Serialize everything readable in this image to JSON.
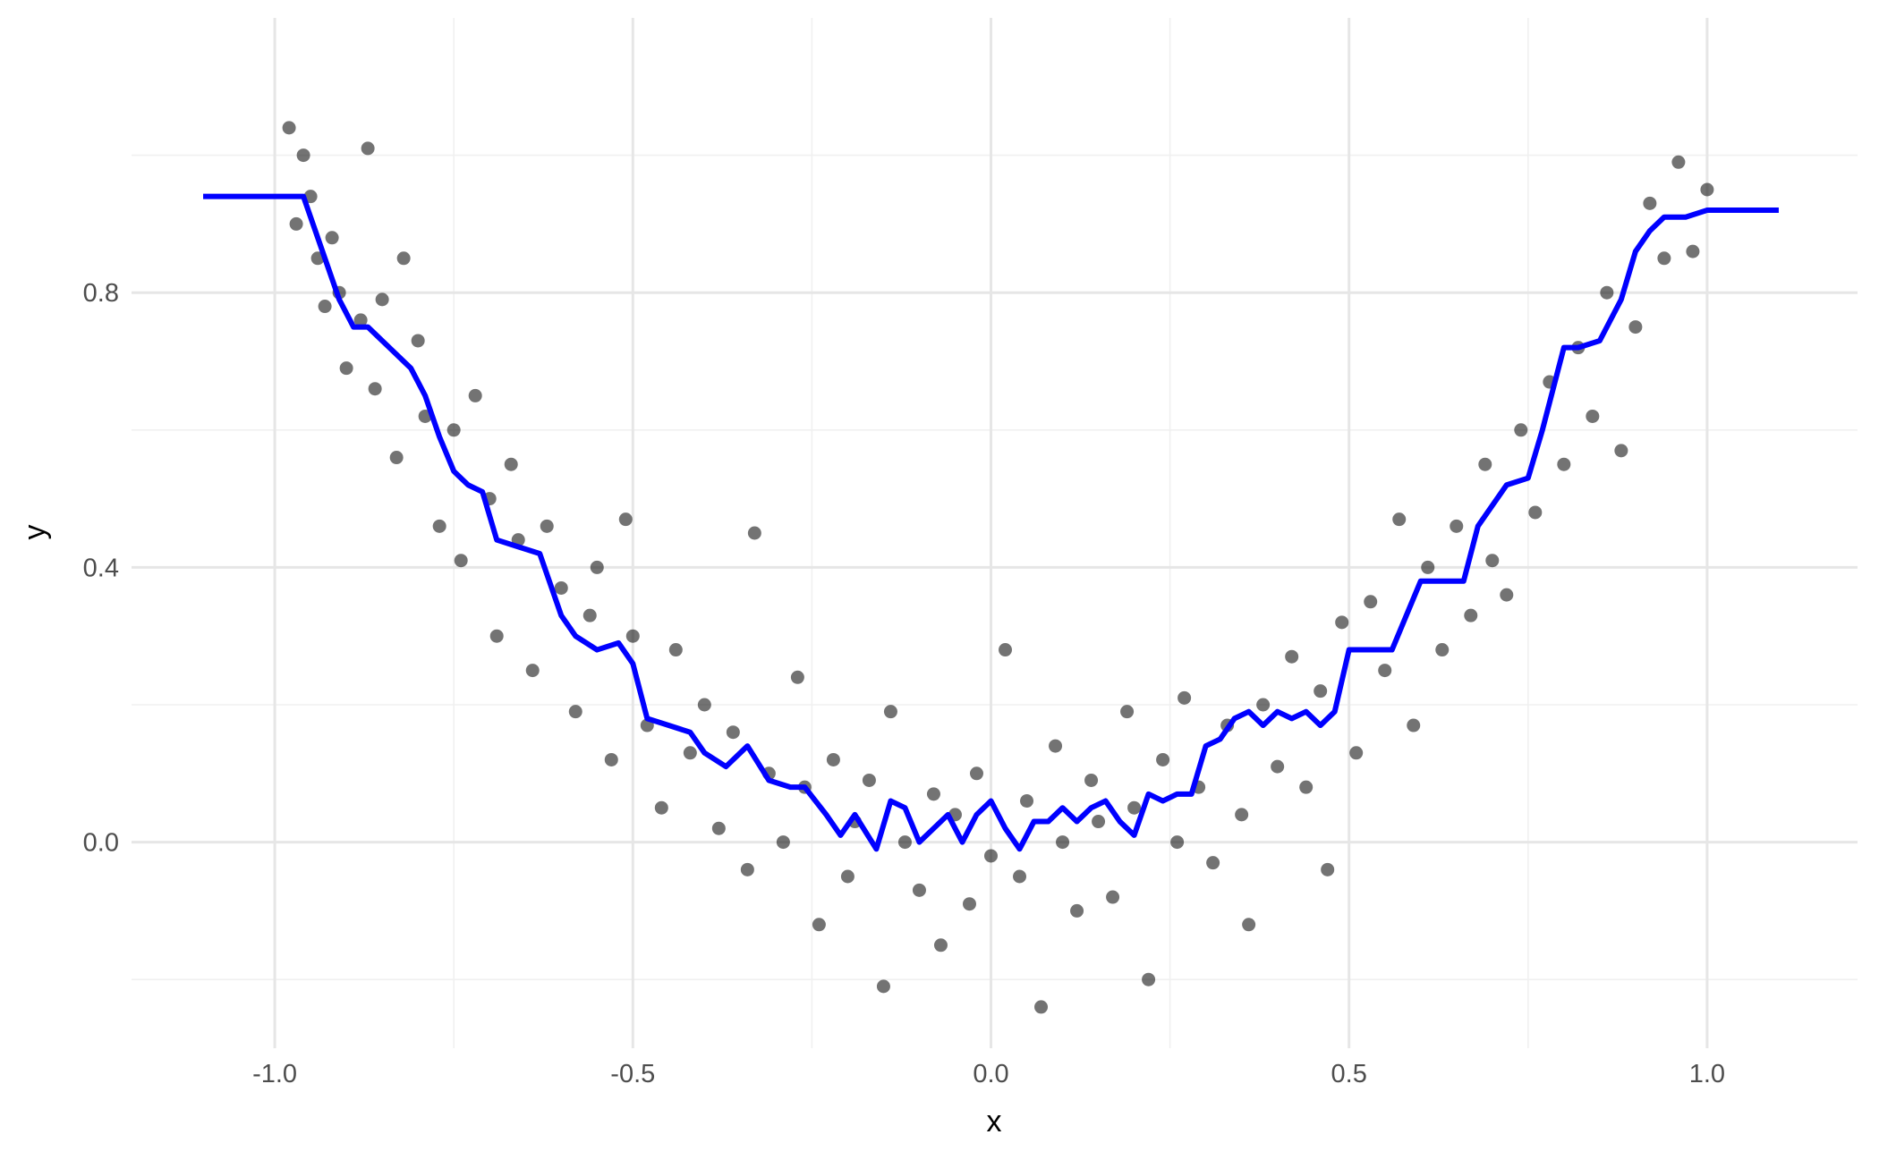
{
  "chart_data": {
    "type": "scatter",
    "xlabel": "x",
    "ylabel": "y",
    "xlim": [
      -1.2,
      1.21
    ],
    "ylim": [
      -0.3,
      1.2
    ],
    "xticks": [
      {
        "value": -1,
        "label": "-1.0"
      },
      {
        "value": -0.5,
        "label": "-0.5"
      },
      {
        "value": 0,
        "label": "0.0"
      },
      {
        "value": 0.5,
        "label": "0.5"
      },
      {
        "value": 1,
        "label": "1.0"
      }
    ],
    "yticks": [
      {
        "value": 0,
        "label": "0.0"
      },
      {
        "value": 0.4,
        "label": "0.4"
      },
      {
        "value": 0.8,
        "label": "0.8"
      }
    ],
    "x_minor_grid": [
      -0.75,
      -0.25,
      0.25,
      0.75
    ],
    "y_minor_grid": [
      -0.2,
      0.2,
      0.6,
      1.0
    ],
    "grid": true,
    "series": [
      {
        "type": "scatter",
        "color": "#000000",
        "x": [
          -0.98,
          -0.97,
          -0.96,
          -0.95,
          -0.94,
          -0.93,
          -0.92,
          -0.91,
          -0.9,
          -0.88,
          -0.87,
          -0.86,
          -0.85,
          -0.83,
          -0.82,
          -0.8,
          -0.79,
          -0.77,
          -0.75,
          -0.74,
          -0.72,
          -0.7,
          -0.69,
          -0.67,
          -0.66,
          -0.64,
          -0.62,
          -0.6,
          -0.58,
          -0.56,
          -0.55,
          -0.53,
          -0.51,
          -0.5,
          -0.48,
          -0.46,
          -0.44,
          -0.42,
          -0.4,
          -0.38,
          -0.36,
          -0.34,
          -0.33,
          -0.31,
          -0.29,
          -0.27,
          -0.26,
          -0.24,
          -0.22,
          -0.2,
          -0.19,
          -0.17,
          -0.15,
          -0.14,
          -0.12,
          -0.1,
          -0.08,
          -0.07,
          -0.05,
          -0.03,
          -0.02,
          0,
          0.02,
          0.04,
          0.05,
          0.07,
          0.09,
          0.1,
          0.12,
          0.14,
          0.15,
          0.17,
          0.19,
          0.2,
          0.22,
          0.24,
          0.26,
          0.27,
          0.29,
          0.31,
          0.33,
          0.35,
          0.36,
          0.38,
          0.4,
          0.42,
          0.44,
          0.46,
          0.47,
          0.49,
          0.51,
          0.53,
          0.55,
          0.57,
          0.59,
          0.61,
          0.63,
          0.65,
          0.67,
          0.69,
          0.7,
          0.72,
          0.74,
          0.76,
          0.78,
          0.8,
          0.82,
          0.84,
          0.86,
          0.88,
          0.9,
          0.92,
          0.94,
          0.96,
          0.98,
          1.0
        ],
        "values": [
          1.04,
          0.9,
          1.0,
          0.94,
          0.85,
          0.78,
          0.88,
          0.8,
          0.69,
          0.76,
          1.01,
          0.66,
          0.79,
          0.56,
          0.85,
          0.73,
          0.62,
          0.46,
          0.6,
          0.41,
          0.65,
          0.5,
          0.3,
          0.55,
          0.44,
          0.25,
          0.46,
          0.37,
          0.19,
          0.33,
          0.4,
          0.12,
          0.47,
          0.3,
          0.17,
          0.05,
          0.28,
          0.13,
          0.2,
          0.02,
          0.16,
          -0.04,
          0.45,
          0.1,
          0.0,
          0.24,
          0.08,
          -0.12,
          0.12,
          -0.05,
          0.03,
          0.09,
          -0.21,
          0.19,
          0.0,
          -0.07,
          0.07,
          -0.15,
          0.04,
          -0.09,
          0.1,
          -0.02,
          0.28,
          -0.05,
          0.06,
          -0.24,
          0.14,
          0.0,
          -0.1,
          0.09,
          0.03,
          -0.08,
          0.19,
          0.05,
          -0.2,
          0.12,
          0.0,
          0.21,
          0.08,
          -0.03,
          0.17,
          0.04,
          -0.12,
          0.2,
          0.11,
          0.27,
          0.08,
          0.22,
          -0.04,
          0.32,
          0.13,
          0.35,
          0.25,
          0.47,
          0.17,
          0.4,
          0.28,
          0.46,
          0.33,
          0.55,
          0.41,
          0.36,
          0.6,
          0.48,
          0.67,
          0.55,
          0.72,
          0.62,
          0.8,
          0.57,
          0.75,
          0.93,
          0.85,
          0.99,
          0.86,
          0.95
        ]
      },
      {
        "type": "line",
        "color": "#0000ff",
        "x": [
          -1.1,
          -0.96,
          -0.94,
          -0.91,
          -0.89,
          -0.87,
          -0.84,
          -0.81,
          -0.79,
          -0.77,
          -0.75,
          -0.73,
          -0.71,
          -0.69,
          -0.66,
          -0.63,
          -0.6,
          -0.58,
          -0.55,
          -0.52,
          -0.5,
          -0.48,
          -0.45,
          -0.42,
          -0.4,
          -0.37,
          -0.34,
          -0.31,
          -0.28,
          -0.26,
          -0.23,
          -0.21,
          -0.19,
          -0.16,
          -0.14,
          -0.12,
          -0.1,
          -0.08,
          -0.06,
          -0.04,
          -0.02,
          0,
          0.02,
          0.04,
          0.06,
          0.08,
          0.1,
          0.12,
          0.14,
          0.16,
          0.18,
          0.2,
          0.22,
          0.24,
          0.26,
          0.28,
          0.3,
          0.32,
          0.34,
          0.36,
          0.38,
          0.4,
          0.42,
          0.44,
          0.46,
          0.48,
          0.5,
          0.53,
          0.56,
          0.6,
          0.63,
          0.66,
          0.68,
          0.72,
          0.75,
          0.77,
          0.8,
          0.82,
          0.85,
          0.88,
          0.9,
          0.92,
          0.94,
          0.97,
          1.0,
          1.1
        ],
        "values": [
          0.94,
          0.94,
          0.88,
          0.79,
          0.75,
          0.75,
          0.72,
          0.69,
          0.65,
          0.59,
          0.54,
          0.52,
          0.51,
          0.44,
          0.43,
          0.42,
          0.33,
          0.3,
          0.28,
          0.29,
          0.26,
          0.18,
          0.17,
          0.16,
          0.13,
          0.11,
          0.14,
          0.09,
          0.08,
          0.08,
          0.04,
          0.01,
          0.04,
          -0.01,
          0.06,
          0.05,
          0.0,
          0.02,
          0.04,
          0.0,
          0.04,
          0.06,
          0.02,
          -0.01,
          0.03,
          0.03,
          0.05,
          0.03,
          0.05,
          0.06,
          0.03,
          0.01,
          0.07,
          0.06,
          0.07,
          0.07,
          0.14,
          0.15,
          0.18,
          0.19,
          0.17,
          0.19,
          0.18,
          0.19,
          0.17,
          0.19,
          0.28,
          0.28,
          0.28,
          0.38,
          0.38,
          0.38,
          0.46,
          0.52,
          0.53,
          0.6,
          0.72,
          0.72,
          0.73,
          0.79,
          0.86,
          0.89,
          0.91,
          0.91,
          0.92,
          0.92
        ]
      }
    ]
  }
}
